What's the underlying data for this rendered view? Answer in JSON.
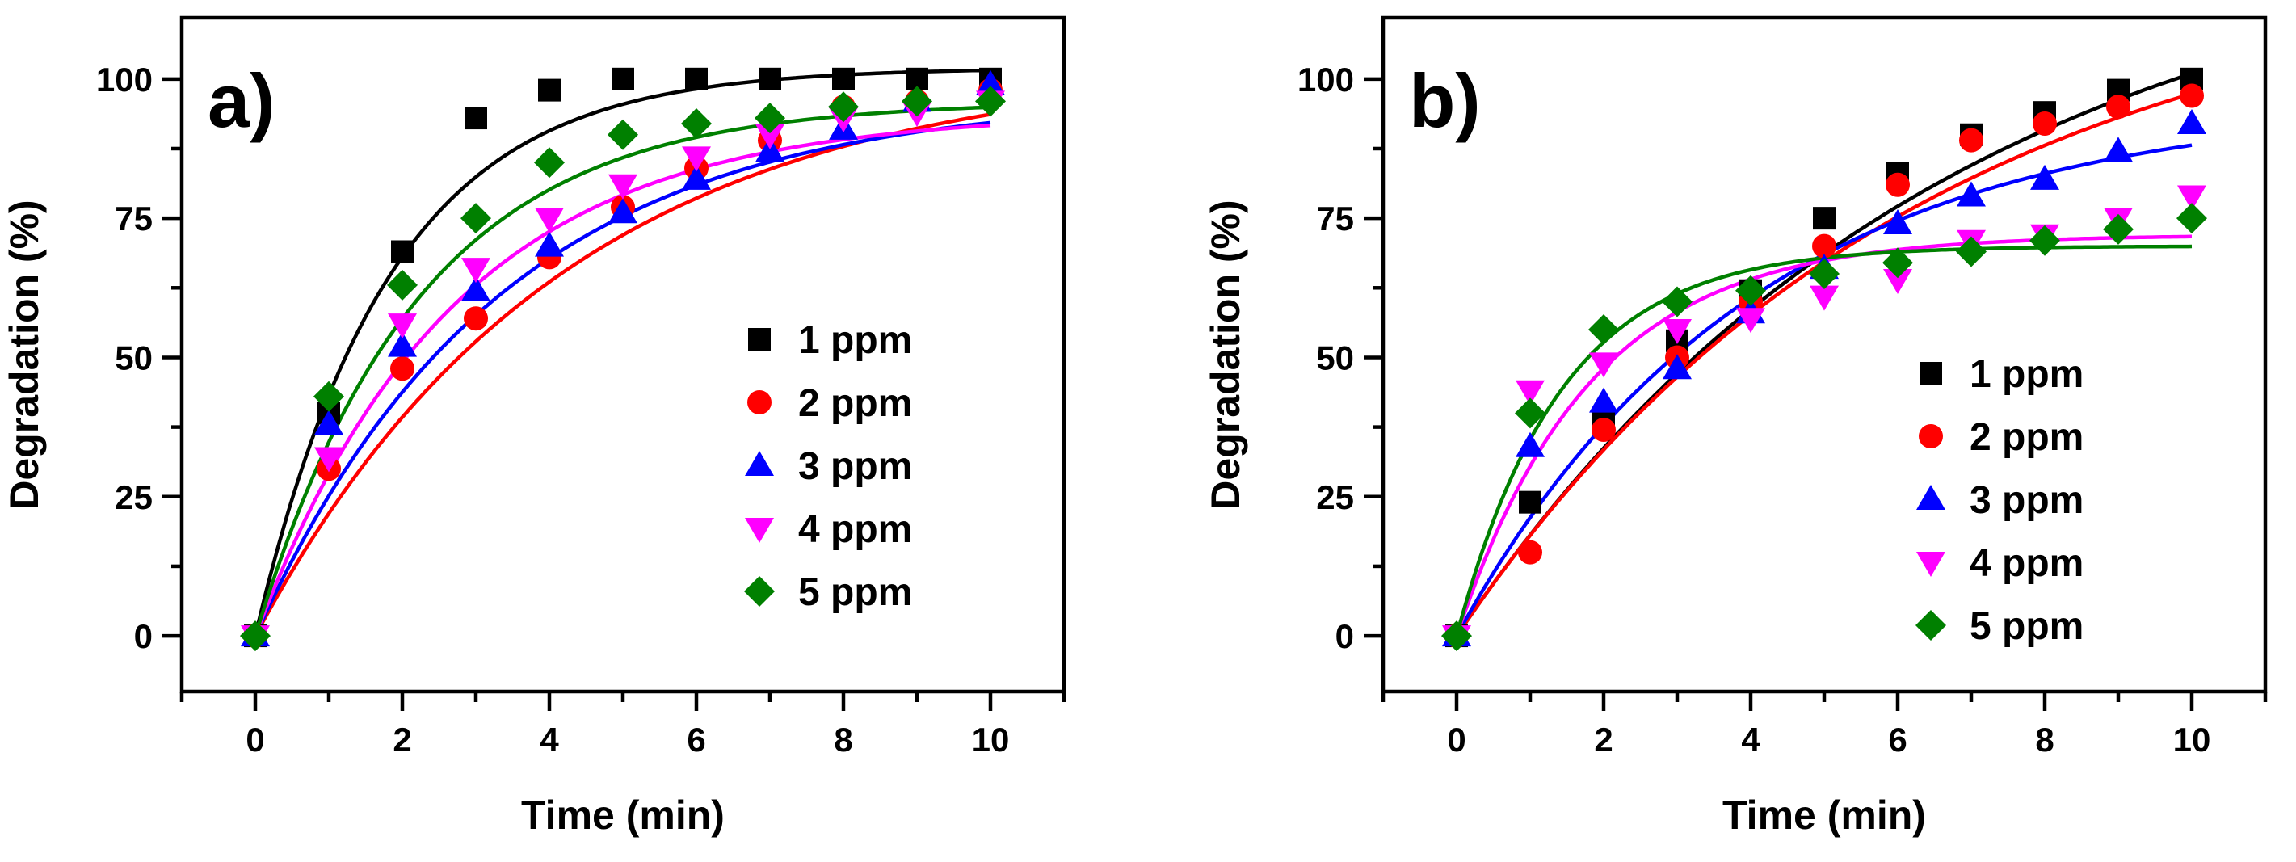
{
  "chart_data": [
    {
      "type": "scatter",
      "panel_label": "a)",
      "xlabel": "Time (min)",
      "ylabel": "Degradation (%)",
      "xlim": [
        -1,
        11
      ],
      "ylim": [
        -10,
        111
      ],
      "xticks": [
        0,
        2,
        4,
        6,
        8,
        10
      ],
      "xtick_labels": [
        "0",
        "2",
        "4",
        "6",
        "8",
        "10"
      ],
      "yticks": [
        0,
        25,
        50,
        75,
        100
      ],
      "ytick_labels": [
        "0",
        "25",
        "50",
        "75",
        "100"
      ],
      "legend_position": "center-right",
      "x": [
        0,
        1,
        2,
        3,
        4,
        5,
        6,
        7,
        8,
        9,
        10
      ],
      "series": [
        {
          "name": "1 ppm",
          "marker": "square",
          "color": "#000000",
          "values": [
            0,
            40,
            69,
            93,
            98,
            100,
            100,
            100,
            100,
            100,
            100
          ],
          "fit": {
            "A": 102,
            "k": 0.55
          }
        },
        {
          "name": "2 ppm",
          "marker": "circle",
          "color": "#ff0000",
          "values": [
            0,
            30,
            48,
            57,
            68,
            77,
            84,
            89,
            95,
            96,
            98
          ],
          "fit": {
            "A": 103,
            "k": 0.24
          }
        },
        {
          "name": "3 ppm",
          "marker": "triangle-up",
          "color": "#0000ff",
          "values": [
            0,
            38,
            52,
            62,
            70,
            76,
            82,
            87,
            91,
            96,
            99
          ],
          "fit": {
            "A": 97,
            "k": 0.3
          }
        },
        {
          "name": "4 ppm",
          "marker": "triangle-down",
          "color": "#ff00ff",
          "values": [
            0,
            32,
            56,
            66,
            75,
            81,
            86,
            90,
            93,
            94,
            96
          ],
          "fit": {
            "A": 94,
            "k": 0.37
          }
        },
        {
          "name": "5 ppm",
          "marker": "diamond",
          "color": "#008000",
          "values": [
            0,
            43,
            63,
            75,
            85,
            90,
            92,
            93,
            95,
            96,
            96
          ],
          "fit": {
            "A": 96,
            "k": 0.45
          }
        }
      ]
    },
    {
      "type": "scatter",
      "panel_label": "b)",
      "xlabel": "Time (min)",
      "ylabel": "Degradation (%)",
      "xlim": [
        -1,
        11
      ],
      "ylim": [
        -10,
        111
      ],
      "xticks": [
        0,
        2,
        4,
        6,
        8,
        10
      ],
      "xtick_labels": [
        "0",
        "2",
        "4",
        "6",
        "8",
        "10"
      ],
      "yticks": [
        0,
        25,
        50,
        75,
        100
      ],
      "ytick_labels": [
        "0",
        "25",
        "50",
        "75",
        "100"
      ],
      "legend_position": "center-right",
      "x": [
        0,
        1,
        2,
        3,
        4,
        5,
        6,
        7,
        8,
        9,
        10
      ],
      "series": [
        {
          "name": "1 ppm",
          "marker": "square",
          "color": "#000000",
          "values": [
            0,
            24,
            39,
            53,
            62,
            75,
            83,
            90,
            94,
            98,
            100
          ],
          "fit": {
            "A": 130,
            "k": 0.15
          }
        },
        {
          "name": "2 ppm",
          "marker": "circle",
          "color": "#ff0000",
          "values": [
            0,
            15,
            37,
            50,
            60,
            70,
            81,
            89,
            92,
            95,
            97
          ],
          "fit": {
            "A": 122,
            "k": 0.16
          }
        },
        {
          "name": "3 ppm",
          "marker": "triangle-up",
          "color": "#0000ff",
          "values": [
            0,
            34,
            42,
            48,
            58,
            66,
            74,
            79,
            82,
            87,
            92
          ],
          "fit": {
            "A": 96,
            "k": 0.25
          }
        },
        {
          "name": "4 ppm",
          "marker": "triangle-down",
          "color": "#ff00ff",
          "values": [
            0,
            44,
            49,
            55,
            57,
            61,
            64,
            71,
            72,
            75,
            79
          ],
          "fit": {
            "A": 72,
            "k": 0.55
          }
        },
        {
          "name": "5 ppm",
          "marker": "diamond",
          "color": "#008000",
          "values": [
            0,
            40,
            55,
            60,
            62,
            65,
            67,
            69,
            71,
            73,
            75
          ],
          "fit": {
            "A": 70,
            "k": 0.7
          }
        }
      ]
    }
  ]
}
